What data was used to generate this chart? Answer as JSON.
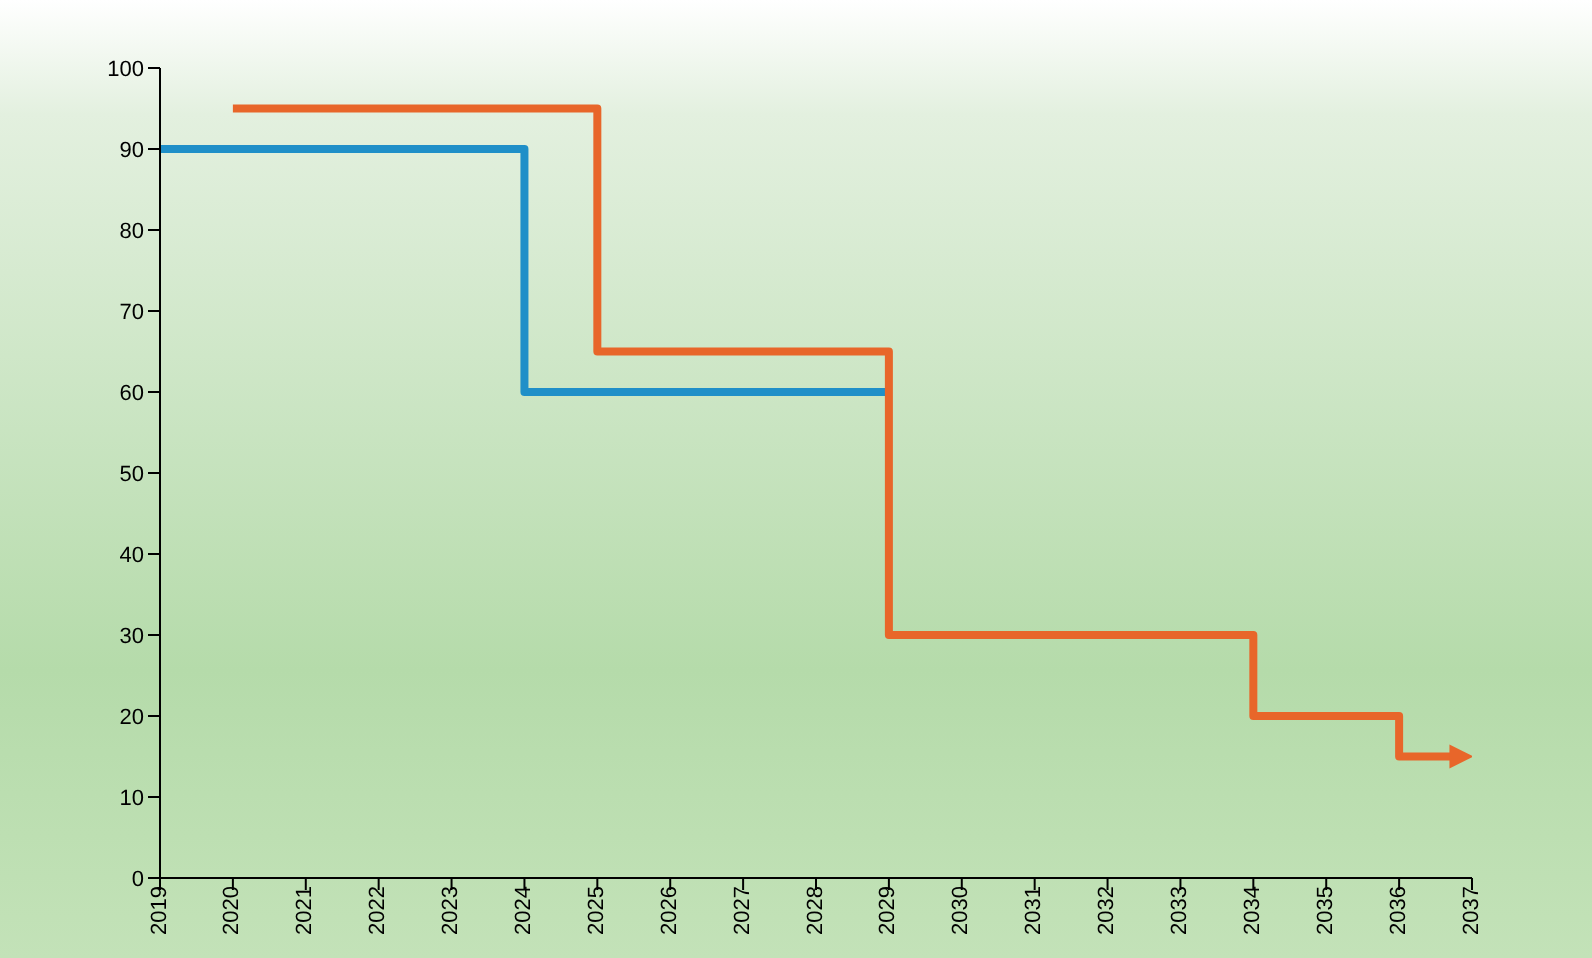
{
  "chart_data": {
    "type": "step",
    "xlim": [
      2019,
      2037
    ],
    "xticks": [
      2019,
      2020,
      2021,
      2022,
      2023,
      2024,
      2025,
      2026,
      2027,
      2028,
      2029,
      2030,
      2031,
      2032,
      2033,
      2034,
      2035,
      2036,
      2037
    ],
    "ylim": [
      0,
      100
    ],
    "yticks": [
      0,
      10,
      20,
      30,
      40,
      50,
      60,
      70,
      80,
      90,
      100
    ],
    "grid": false,
    "marker": "none",
    "line_style": "solid",
    "series": [
      {
        "color": "#1f8fc8",
        "x": [
          2019,
          2024,
          2029
        ],
        "values": [
          90,
          60,
          60
        ]
      },
      {
        "color": "#e8662a",
        "x": [
          2020,
          2025,
          2029,
          2034,
          2036,
          2036.8
        ],
        "values": [
          95,
          65,
          30,
          20,
          15,
          15
        ]
      }
    ]
  }
}
